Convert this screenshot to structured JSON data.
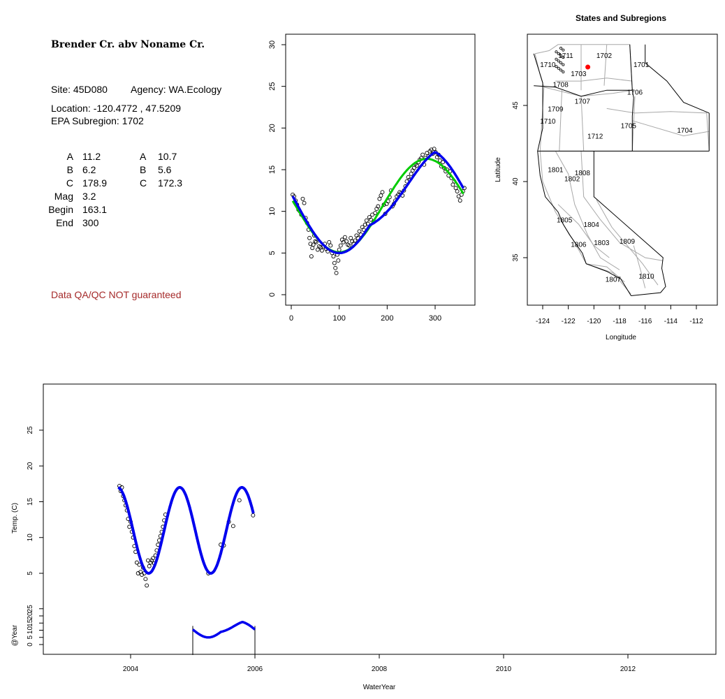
{
  "site_info": {
    "title": "Brender Cr. abv Noname Cr.",
    "site": "Site: 45D080",
    "agency": "Agency: WA.Ecology",
    "location": "Location: -120.4772 , 47.5209",
    "epa_subregion": "EPA Subregion: 1702",
    "params_left": [
      {
        "name": "A",
        "value": "11.2"
      },
      {
        "name": "B",
        "value": "6.2"
      },
      {
        "name": "C",
        "value": "178.9"
      },
      {
        "name": "Mag",
        "value": "3.2"
      },
      {
        "name": "Begin",
        "value": "163.1"
      },
      {
        "name": "End",
        "value": "300"
      }
    ],
    "params_right": [
      {
        "name": "A",
        "value": "10.7"
      },
      {
        "name": "B",
        "value": "5.6"
      },
      {
        "name": "C",
        "value": "172.3"
      }
    ],
    "qa_note": "Data QA/QC NOT guaranteed"
  },
  "colors": {
    "green_fit": "#00cc00",
    "blue_fit": "#0000ee",
    "site_marker": "#ff0000",
    "qa_text": "#a52a2a"
  },
  "chart_data": [
    {
      "id": "seasonal",
      "type": "scatter",
      "xlim": [
        0,
        365
      ],
      "ylim": [
        0,
        30
      ],
      "xticks": [
        0,
        100,
        200,
        300
      ],
      "yticks": [
        0,
        5,
        10,
        15,
        20,
        25,
        30
      ],
      "points": [
        [
          3,
          12.0
        ],
        [
          6,
          11.8
        ],
        [
          9,
          11.3
        ],
        [
          12,
          10.8
        ],
        [
          15,
          10.2
        ],
        [
          18,
          10.0
        ],
        [
          21,
          9.6
        ],
        [
          24,
          11.5
        ],
        [
          27,
          11.0
        ],
        [
          30,
          9.2
        ],
        [
          33,
          8.6
        ],
        [
          36,
          7.8
        ],
        [
          38,
          6.8
        ],
        [
          40,
          6.1
        ],
        [
          42,
          4.6
        ],
        [
          44,
          5.6
        ],
        [
          46,
          6.0
        ],
        [
          48,
          7.1
        ],
        [
          50,
          6.4
        ],
        [
          52,
          6.3
        ],
        [
          55,
          5.4
        ],
        [
          58,
          5.8
        ],
        [
          61,
          5.7
        ],
        [
          64,
          5.3
        ],
        [
          67,
          5.8
        ],
        [
          70,
          6.1
        ],
        [
          73,
          5.5
        ],
        [
          76,
          5.2
        ],
        [
          79,
          6.3
        ],
        [
          82,
          5.9
        ],
        [
          85,
          5.0
        ],
        [
          88,
          4.6
        ],
        [
          90,
          3.8
        ],
        [
          92,
          3.2
        ],
        [
          94,
          2.6
        ],
        [
          96,
          4.8
        ],
        [
          98,
          4.1
        ],
        [
          100,
          5.4
        ],
        [
          103,
          5.9
        ],
        [
          106,
          6.6
        ],
        [
          109,
          6.3
        ],
        [
          112,
          6.9
        ],
        [
          115,
          6.4
        ],
        [
          118,
          6.0
        ],
        [
          121,
          5.9
        ],
        [
          124,
          6.8
        ],
        [
          127,
          6.4
        ],
        [
          130,
          6.1
        ],
        [
          133,
          6.5
        ],
        [
          136,
          7.1
        ],
        [
          139,
          6.8
        ],
        [
          142,
          7.6
        ],
        [
          145,
          7.2
        ],
        [
          148,
          8.1
        ],
        [
          151,
          7.8
        ],
        [
          154,
          8.4
        ],
        [
          157,
          8.9
        ],
        [
          160,
          8.5
        ],
        [
          163,
          9.3
        ],
        [
          166,
          9.0
        ],
        [
          169,
          9.6
        ],
        [
          172,
          8.8
        ],
        [
          175,
          9.8
        ],
        [
          178,
          10.3
        ],
        [
          181,
          10.6
        ],
        [
          184,
          11.5
        ],
        [
          187,
          11.9
        ],
        [
          190,
          12.3
        ],
        [
          193,
          10.8
        ],
        [
          196,
          9.7
        ],
        [
          199,
          10.9
        ],
        [
          202,
          11.2
        ],
        [
          205,
          11.7
        ],
        [
          208,
          12.5
        ],
        [
          211,
          10.6
        ],
        [
          214,
          10.9
        ],
        [
          217,
          11.3
        ],
        [
          220,
          11.8
        ],
        [
          223,
          12.0
        ],
        [
          226,
          12.3
        ],
        [
          229,
          12.2
        ],
        [
          232,
          11.9
        ],
        [
          235,
          12.5
        ],
        [
          238,
          13.0
        ],
        [
          241,
          13.6
        ],
        [
          244,
          14.1
        ],
        [
          247,
          13.8
        ],
        [
          250,
          14.5
        ],
        [
          253,
          14.9
        ],
        [
          256,
          15.2
        ],
        [
          259,
          15.7
        ],
        [
          262,
          15.5
        ],
        [
          265,
          15.9
        ],
        [
          268,
          16.2
        ],
        [
          271,
          16.4
        ],
        [
          274,
          16.8
        ],
        [
          277,
          15.6
        ],
        [
          280,
          16.4
        ],
        [
          283,
          17.0
        ],
        [
          286,
          16.6
        ],
        [
          289,
          17.2
        ],
        [
          292,
          17.4
        ],
        [
          295,
          16.9
        ],
        [
          298,
          17.5
        ],
        [
          301,
          17.1
        ],
        [
          304,
          16.5
        ],
        [
          307,
          16.8
        ],
        [
          310,
          16.1
        ],
        [
          313,
          15.4
        ],
        [
          316,
          15.9
        ],
        [
          319,
          15.2
        ],
        [
          322,
          14.8
        ],
        [
          325,
          15.0
        ],
        [
          328,
          14.3
        ],
        [
          331,
          14.8
        ],
        [
          334,
          14.0
        ],
        [
          337,
          13.2
        ],
        [
          340,
          13.6
        ],
        [
          343,
          12.8
        ],
        [
          346,
          12.4
        ],
        [
          349,
          11.8
        ],
        [
          352,
          11.3
        ],
        [
          355,
          12.0
        ],
        [
          358,
          12.4
        ],
        [
          361,
          12.8
        ]
      ]
    },
    {
      "id": "subregion_map",
      "type": "map",
      "title": "States and Subregions",
      "xlabel": "Longitude",
      "ylabel": "Latitude",
      "xlim": [
        -125.5,
        -110.5
      ],
      "ylim": [
        32,
        49.5
      ],
      "xticks": [
        -124,
        -122,
        -120,
        -118,
        -116,
        -114,
        -112
      ],
      "yticks": [
        35,
        40,
        45
      ],
      "site": {
        "lon": -120.4772,
        "lat": 47.5209
      },
      "region_labels": [
        {
          "label": "1711",
          "lon": -122.2,
          "lat": 48.3
        },
        {
          "label": "1702",
          "lon": -119.2,
          "lat": 48.3
        },
        {
          "label": "1710",
          "lon": -123.6,
          "lat": 47.7
        },
        {
          "label": "1703",
          "lon": -121.2,
          "lat": 47.1
        },
        {
          "label": "1701",
          "lon": -116.3,
          "lat": 47.7
        },
        {
          "label": "1708",
          "lon": -122.6,
          "lat": 46.4
        },
        {
          "label": "1706",
          "lon": -116.8,
          "lat": 45.9
        },
        {
          "label": "1707",
          "lon": -120.9,
          "lat": 45.3
        },
        {
          "label": "1709",
          "lon": -123.0,
          "lat": 44.8
        },
        {
          "label": "1710",
          "lon": -123.6,
          "lat": 44.0
        },
        {
          "label": "1705",
          "lon": -117.3,
          "lat": 43.7
        },
        {
          "label": "1704",
          "lon": -112.9,
          "lat": 43.4
        },
        {
          "label": "1712",
          "lon": -119.9,
          "lat": 43.0
        },
        {
          "label": "1801",
          "lon": -123.0,
          "lat": 40.8
        },
        {
          "label": "1808",
          "lon": -120.9,
          "lat": 40.6
        },
        {
          "label": "1802",
          "lon": -121.7,
          "lat": 40.2
        },
        {
          "label": "1805",
          "lon": -122.3,
          "lat": 37.5
        },
        {
          "label": "1804",
          "lon": -120.2,
          "lat": 37.2
        },
        {
          "label": "1806",
          "lon": -121.2,
          "lat": 35.9
        },
        {
          "label": "1803",
          "lon": -119.4,
          "lat": 36.0
        },
        {
          "label": "1809",
          "lon": -117.4,
          "lat": 36.1
        },
        {
          "label": "1807",
          "lon": -118.5,
          "lat": 33.6
        },
        {
          "label": "1810",
          "lon": -115.9,
          "lat": 33.8
        }
      ]
    },
    {
      "id": "timeseries",
      "type": "line",
      "xlabel": "WaterYear",
      "ylabel": "Temp. (C)",
      "ylabel2": "@Year",
      "xlim": [
        2003.55,
        2013.35
      ],
      "ylim": [
        0,
        30
      ],
      "xticks": [
        2004,
        2006,
        2008,
        2010,
        2012
      ],
      "yticks": [
        5,
        10,
        15,
        20,
        25
      ],
      "yticks2": [
        0,
        5,
        10,
        15,
        20,
        25
      ],
      "series": [
        {
          "name": "observed",
          "x": [
            2003.82,
            2003.84,
            2003.86,
            2003.88,
            2003.9,
            2003.92,
            2003.94,
            2003.96,
            2003.98,
            2004.0,
            2004.02,
            2004.04,
            2004.06,
            2004.08,
            2004.1,
            2004.12,
            2004.14,
            2004.16,
            2004.18,
            2004.2,
            2004.22,
            2004.24,
            2004.26,
            2004.28,
            2004.3,
            2004.32,
            2004.34,
            2004.36,
            2004.38,
            2004.4,
            2004.42,
            2004.44,
            2004.46,
            2004.48,
            2004.5,
            2004.52,
            2004.54,
            2004.56,
            2005.25,
            2005.45,
            2005.5,
            2005.58,
            2005.65,
            2005.75,
            2005.97
          ],
          "y": [
            17.2,
            16.5,
            17.0,
            15.8,
            15.2,
            14.5,
            13.8,
            12.6,
            11.5,
            12.2,
            10.8,
            10.0,
            8.8,
            8.0,
            6.5,
            5.0,
            6.2,
            5.2,
            4.8,
            5.8,
            5.0,
            4.2,
            3.3,
            6.8,
            6.0,
            6.5,
            6.8,
            7.1,
            6.4,
            7.5,
            8.2,
            9.0,
            9.6,
            10.2,
            10.8,
            11.5,
            12.4,
            13.2,
            5.0,
            9.0,
            8.9,
            12.2,
            11.6,
            15.2,
            13.1
          ]
        }
      ],
      "sub_ylim": [
        0,
        25
      ],
      "sub_x": [
        2005.0,
        2006.0
      ]
    }
  ]
}
